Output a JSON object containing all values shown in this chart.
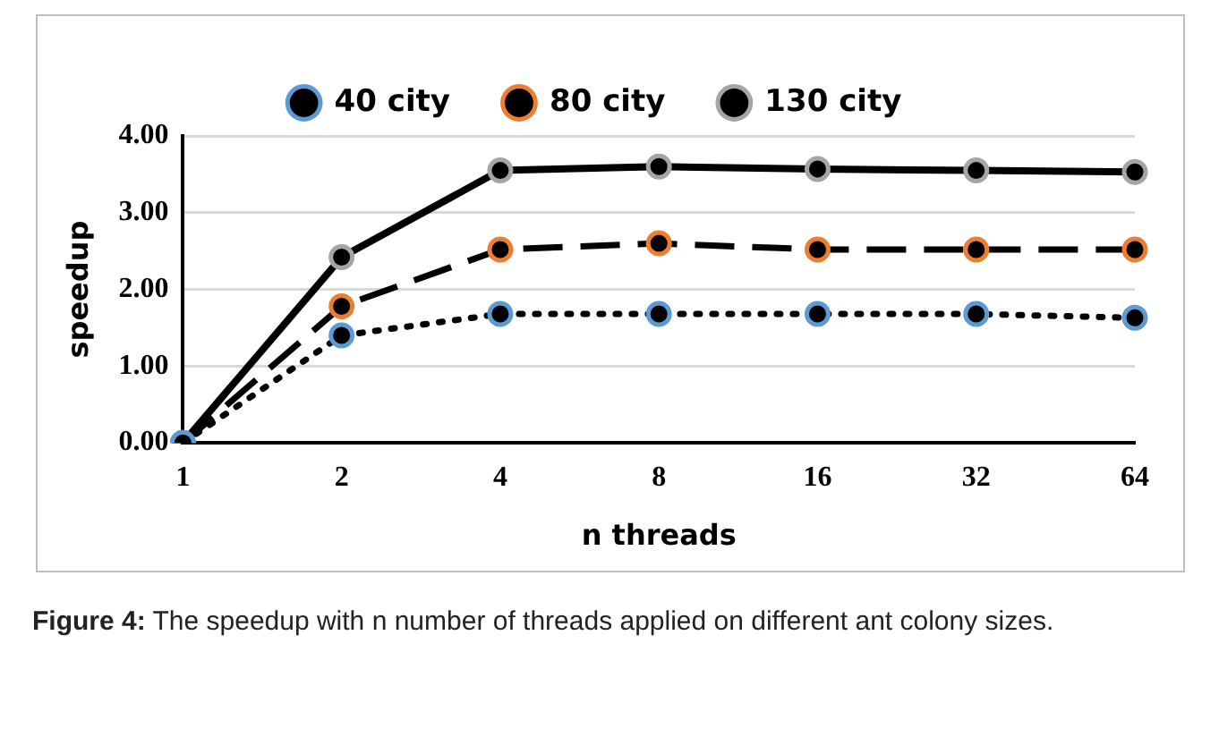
{
  "chart_data": {
    "type": "line",
    "categories": [
      "1",
      "2",
      "4",
      "8",
      "16",
      "32",
      "64"
    ],
    "series": [
      {
        "name": "40 city",
        "color": "#5b9bd5",
        "line_style": "dotted",
        "values": [
          0,
          1.4,
          1.68,
          1.68,
          1.68,
          1.68,
          1.63
        ]
      },
      {
        "name": "80 city",
        "color": "#ed7d31",
        "line_style": "dashed",
        "values": [
          0,
          1.78,
          2.52,
          2.6,
          2.52,
          2.52,
          2.52
        ]
      },
      {
        "name": "130 city",
        "color": "#a5a5a5",
        "line_style": "solid",
        "values": [
          0,
          2.42,
          3.55,
          3.6,
          3.57,
          3.55,
          3.53
        ]
      }
    ],
    "xlabel": "n threads",
    "ylabel": "speedup",
    "ylim": [
      0,
      4
    ],
    "yticks": [
      {
        "value": 0,
        "label": "0.00"
      },
      {
        "value": 1,
        "label": "1.00"
      },
      {
        "value": 2,
        "label": "2.00"
      },
      {
        "value": 3,
        "label": "3.00"
      },
      {
        "value": 4,
        "label": "4.00"
      }
    ],
    "grid": "y",
    "legend": "top",
    "marker": "circle",
    "annotations": [
      "Figure 4: The speedup with n number of threads applied on different ant colony sizes."
    ]
  }
}
